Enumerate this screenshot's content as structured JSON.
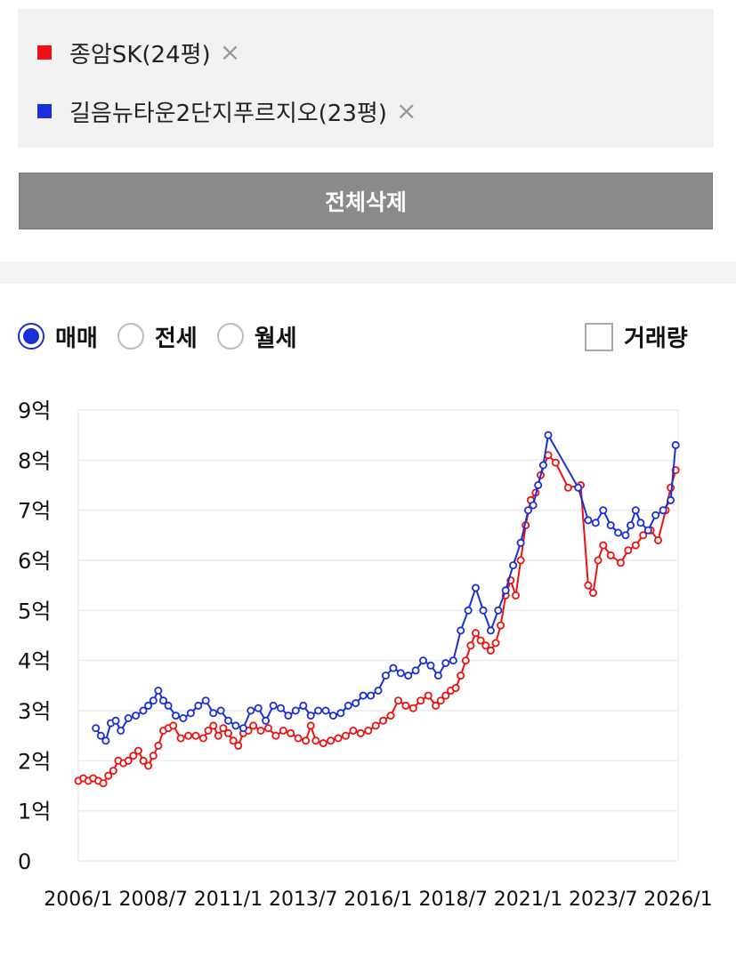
{
  "legend": {
    "items": [
      {
        "label": "종암SK(24평)",
        "color": "#ee1111",
        "remove_icon": "×"
      },
      {
        "label": "길음뉴타운2단지푸르지오(23평)",
        "color": "#1a2fd8",
        "remove_icon": "×"
      }
    ]
  },
  "delete_all_label": "전체삭제",
  "deal_types": [
    {
      "label": "매매",
      "selected": true
    },
    {
      "label": "전세",
      "selected": false
    },
    {
      "label": "월세",
      "selected": false
    }
  ],
  "volume_toggle": {
    "label": "거래량",
    "checked": false
  },
  "chart_data": {
    "type": "line",
    "x_ticks": [
      "2006/1",
      "2008/7",
      "2011/1",
      "2013/7",
      "2016/1",
      "2018/7",
      "2021/1",
      "2023/7",
      "2026/1"
    ],
    "y_ticks": [
      "0",
      "1억",
      "2억",
      "3억",
      "4억",
      "5억",
      "6억",
      "7억",
      "8억",
      "9억"
    ],
    "ylim": [
      0,
      9
    ],
    "y_unit": "억",
    "xlim": [
      "2006/1",
      "2026/1"
    ],
    "grid": "horizontal",
    "series": [
      {
        "name": "종암SK(24평)",
        "color": "#ee1111",
        "points": [
          [
            "2006/1",
            1.6
          ],
          [
            "2006/3",
            1.65
          ],
          [
            "2006/5",
            1.6
          ],
          [
            "2006/7",
            1.65
          ],
          [
            "2006/9",
            1.6
          ],
          [
            "2006/11",
            1.55
          ],
          [
            "2007/1",
            1.7
          ],
          [
            "2007/3",
            1.8
          ],
          [
            "2007/5",
            2.0
          ],
          [
            "2007/7",
            1.95
          ],
          [
            "2007/9",
            2.0
          ],
          [
            "2007/11",
            2.1
          ],
          [
            "2008/1",
            2.2
          ],
          [
            "2008/3",
            2.0
          ],
          [
            "2008/5",
            1.9
          ],
          [
            "2008/7",
            2.1
          ],
          [
            "2008/9",
            2.3
          ],
          [
            "2008/11",
            2.6
          ],
          [
            "2009/1",
            2.65
          ],
          [
            "2009/3",
            2.7
          ],
          [
            "2009/6",
            2.45
          ],
          [
            "2009/9",
            2.5
          ],
          [
            "2009/12",
            2.5
          ],
          [
            "2010/3",
            2.45
          ],
          [
            "2010/5",
            2.6
          ],
          [
            "2010/7",
            2.7
          ],
          [
            "2010/9",
            2.5
          ],
          [
            "2010/11",
            2.65
          ],
          [
            "2011/1",
            2.55
          ],
          [
            "2011/3",
            2.4
          ],
          [
            "2011/5",
            2.3
          ],
          [
            "2011/7",
            2.55
          ],
          [
            "2011/9",
            2.6
          ],
          [
            "2011/11",
            2.7
          ],
          [
            "2012/2",
            2.6
          ],
          [
            "2012/5",
            2.65
          ],
          [
            "2012/8",
            2.5
          ],
          [
            "2012/11",
            2.6
          ],
          [
            "2013/2",
            2.55
          ],
          [
            "2013/5",
            2.45
          ],
          [
            "2013/8",
            2.4
          ],
          [
            "2013/10",
            2.7
          ],
          [
            "2013/12",
            2.4
          ],
          [
            "2014/3",
            2.35
          ],
          [
            "2014/6",
            2.4
          ],
          [
            "2014/9",
            2.45
          ],
          [
            "2014/12",
            2.5
          ],
          [
            "2015/3",
            2.6
          ],
          [
            "2015/6",
            2.55
          ],
          [
            "2015/9",
            2.6
          ],
          [
            "2015/12",
            2.7
          ],
          [
            "2016/3",
            2.8
          ],
          [
            "2016/6",
            2.9
          ],
          [
            "2016/9",
            3.2
          ],
          [
            "2016/12",
            3.1
          ],
          [
            "2017/3",
            3.05
          ],
          [
            "2017/6",
            3.2
          ],
          [
            "2017/9",
            3.3
          ],
          [
            "2017/12",
            3.1
          ],
          [
            "2018/2",
            3.2
          ],
          [
            "2018/4",
            3.3
          ],
          [
            "2018/6",
            3.4
          ],
          [
            "2018/8",
            3.45
          ],
          [
            "2018/10",
            3.7
          ],
          [
            "2018/12",
            4.0
          ],
          [
            "2019/2",
            4.3
          ],
          [
            "2019/4",
            4.55
          ],
          [
            "2019/6",
            4.4
          ],
          [
            "2019/8",
            4.3
          ],
          [
            "2019/10",
            4.2
          ],
          [
            "2019/12",
            4.35
          ],
          [
            "2020/2",
            4.7
          ],
          [
            "2020/4",
            5.3
          ],
          [
            "2020/6",
            5.6
          ],
          [
            "2020/8",
            5.3
          ],
          [
            "2020/10",
            6.0
          ],
          [
            "2020/12",
            6.7
          ],
          [
            "2021/2",
            7.2
          ],
          [
            "2021/4",
            7.35
          ],
          [
            "2021/6",
            7.7
          ],
          [
            "2021/9",
            8.1
          ],
          [
            "2021/12",
            7.95
          ],
          [
            "2022/5",
            7.45
          ],
          [
            "2022/10",
            7.5
          ],
          [
            "2023/1",
            5.5
          ],
          [
            "2023/3",
            5.35
          ],
          [
            "2023/5",
            6.0
          ],
          [
            "2023/7",
            6.3
          ],
          [
            "2023/10",
            6.1
          ],
          [
            "2024/2",
            5.95
          ],
          [
            "2024/5",
            6.2
          ],
          [
            "2024/8",
            6.3
          ],
          [
            "2024/11",
            6.5
          ],
          [
            "2025/2",
            6.6
          ],
          [
            "2025/5",
            6.4
          ],
          [
            "2025/8",
            7.0
          ],
          [
            "2025/10",
            7.45
          ],
          [
            "2025/12",
            7.8
          ]
        ]
      },
      {
        "name": "길음뉴타운2단지푸르지오(23평)",
        "color": "#1a2fd8",
        "points": [
          [
            "2006/8",
            2.65
          ],
          [
            "2006/10",
            2.5
          ],
          [
            "2006/12",
            2.4
          ],
          [
            "2007/2",
            2.75
          ],
          [
            "2007/4",
            2.8
          ],
          [
            "2007/6",
            2.6
          ],
          [
            "2007/9",
            2.85
          ],
          [
            "2007/12",
            2.9
          ],
          [
            "2008/3",
            3.0
          ],
          [
            "2008/5",
            3.1
          ],
          [
            "2008/7",
            3.2
          ],
          [
            "2008/9",
            3.4
          ],
          [
            "2008/11",
            3.2
          ],
          [
            "2009/1",
            3.1
          ],
          [
            "2009/4",
            2.9
          ],
          [
            "2009/7",
            2.85
          ],
          [
            "2009/10",
            2.95
          ],
          [
            "2010/1",
            3.1
          ],
          [
            "2010/4",
            3.2
          ],
          [
            "2010/7",
            2.95
          ],
          [
            "2010/10",
            3.0
          ],
          [
            "2011/1",
            2.8
          ],
          [
            "2011/4",
            2.7
          ],
          [
            "2011/7",
            2.65
          ],
          [
            "2011/10",
            3.0
          ],
          [
            "2012/1",
            3.05
          ],
          [
            "2012/4",
            2.8
          ],
          [
            "2012/7",
            3.1
          ],
          [
            "2012/10",
            3.05
          ],
          [
            "2013/1",
            2.9
          ],
          [
            "2013/4",
            3.0
          ],
          [
            "2013/7",
            3.1
          ],
          [
            "2013/10",
            2.9
          ],
          [
            "2014/1",
            3.0
          ],
          [
            "2014/4",
            3.0
          ],
          [
            "2014/7",
            2.9
          ],
          [
            "2014/10",
            2.95
          ],
          [
            "2015/1",
            3.1
          ],
          [
            "2015/4",
            3.15
          ],
          [
            "2015/7",
            3.3
          ],
          [
            "2015/10",
            3.3
          ],
          [
            "2016/1",
            3.4
          ],
          [
            "2016/4",
            3.7
          ],
          [
            "2016/7",
            3.85
          ],
          [
            "2016/10",
            3.75
          ],
          [
            "2017/1",
            3.7
          ],
          [
            "2017/4",
            3.8
          ],
          [
            "2017/7",
            4.0
          ],
          [
            "2017/10",
            3.9
          ],
          [
            "2018/1",
            3.7
          ],
          [
            "2018/4",
            3.95
          ],
          [
            "2018/7",
            4.0
          ],
          [
            "2018/10",
            4.6
          ],
          [
            "2019/1",
            5.0
          ],
          [
            "2019/4",
            5.45
          ],
          [
            "2019/7",
            5.0
          ],
          [
            "2019/10",
            4.6
          ],
          [
            "2020/1",
            5.0
          ],
          [
            "2020/4",
            5.4
          ],
          [
            "2020/7",
            5.9
          ],
          [
            "2020/10",
            6.35
          ],
          [
            "2021/1",
            7.0
          ],
          [
            "2021/3",
            7.1
          ],
          [
            "2021/5",
            7.5
          ],
          [
            "2021/7",
            7.9
          ],
          [
            "2021/9",
            8.5
          ],
          [
            "2022/9",
            7.45
          ],
          [
            "2023/1",
            6.8
          ],
          [
            "2023/4",
            6.75
          ],
          [
            "2023/7",
            7.0
          ],
          [
            "2023/10",
            6.7
          ],
          [
            "2024/1",
            6.55
          ],
          [
            "2024/4",
            6.5
          ],
          [
            "2024/6",
            6.7
          ],
          [
            "2024/8",
            7.0
          ],
          [
            "2024/10",
            6.75
          ],
          [
            "2025/1",
            6.6
          ],
          [
            "2025/4",
            6.9
          ],
          [
            "2025/7",
            7.0
          ],
          [
            "2025/10",
            7.2
          ],
          [
            "2025/12",
            8.3
          ]
        ]
      }
    ]
  }
}
